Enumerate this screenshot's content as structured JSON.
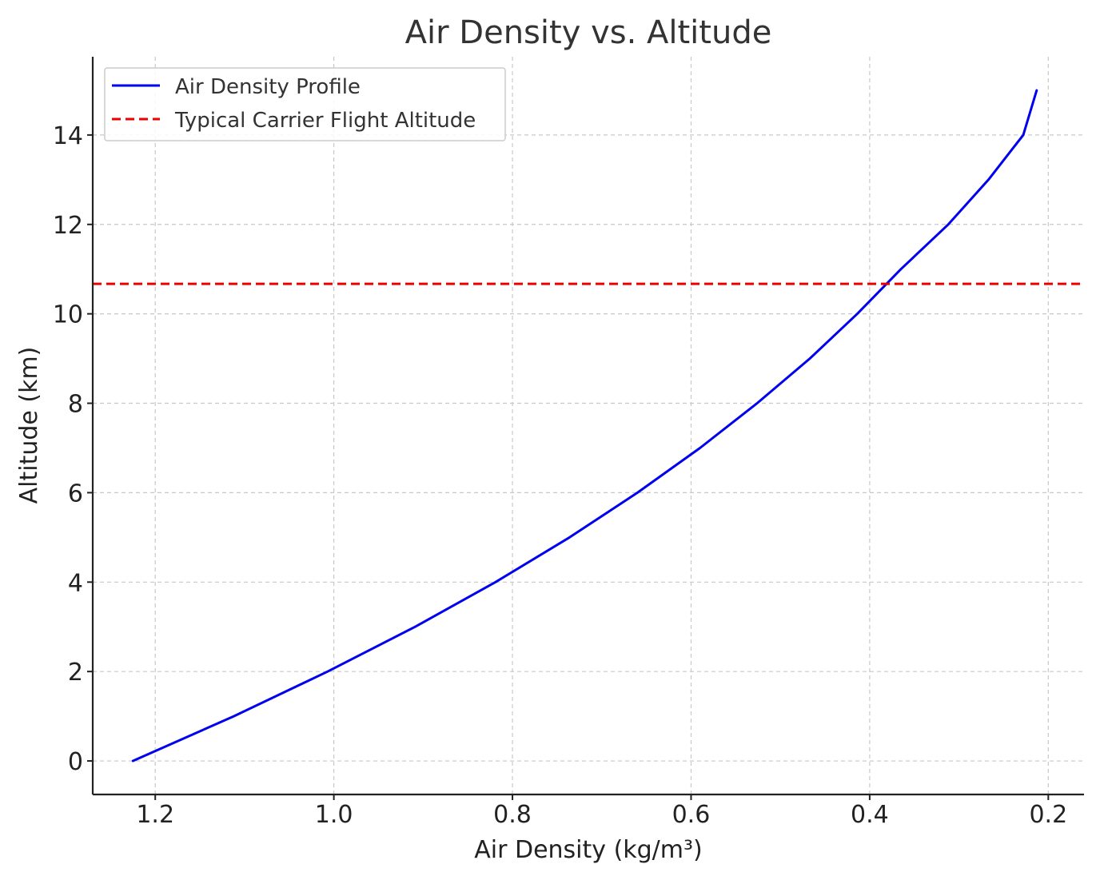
{
  "chart_data": {
    "type": "line",
    "title": "Air Density vs. Altitude",
    "xlabel": "Air Density (kg/m³)",
    "ylabel": "Altitude (km)",
    "x_axis_inverted": true,
    "xlim": [
      1.27,
      0.16
    ],
    "ylim": [
      -0.75,
      15.75
    ],
    "xticks": [
      1.2,
      1.0,
      0.8,
      0.6,
      0.4,
      0.2
    ],
    "xtick_labels": [
      "1.2",
      "1.0",
      "0.8",
      "0.6",
      "0.4",
      "0.2"
    ],
    "yticks": [
      0,
      2,
      4,
      6,
      8,
      10,
      12,
      14
    ],
    "ytick_labels": [
      "0",
      "2",
      "4",
      "6",
      "8",
      "10",
      "12",
      "14"
    ],
    "grid": true,
    "legend_position": "top-left",
    "series": [
      {
        "name": "Air Density Profile",
        "color": "#0000ee",
        "style": "solid",
        "x": [
          1.225,
          1.112,
          1.007,
          0.909,
          0.819,
          0.736,
          0.66,
          0.59,
          0.526,
          0.467,
          0.414,
          0.365,
          0.312,
          0.267,
          0.228,
          0.213
        ],
        "y": [
          0,
          1,
          2,
          3,
          4,
          5,
          6,
          7,
          8,
          9,
          10,
          11,
          12,
          13,
          14,
          15
        ]
      },
      {
        "name": "Typical Carrier Flight Altitude",
        "color": "#ee0000",
        "style": "dashed",
        "type": "hline",
        "y": 10.67
      }
    ]
  }
}
